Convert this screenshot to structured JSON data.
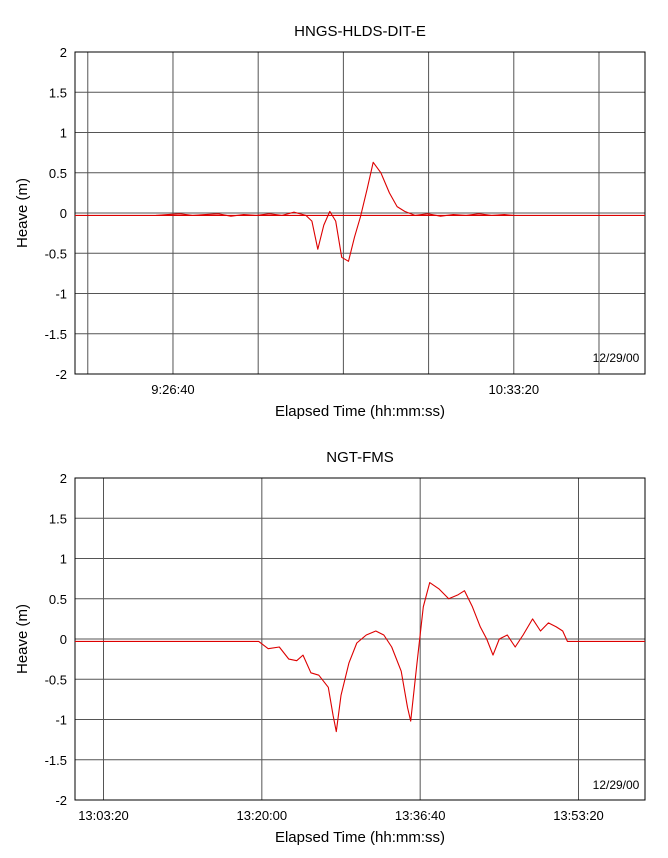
{
  "chart_data": [
    {
      "type": "line",
      "title": "HNGS-HLDS-DIT-E",
      "xlabel": "Elapsed Time (hh:mm:ss)",
      "ylabel": "Heave (m)",
      "date_stamp": "12/29/00",
      "ylim": [
        -2,
        2
      ],
      "yticks": [
        2,
        1.5,
        1,
        0.5,
        0,
        -0.5,
        -1,
        -1.5,
        -2
      ],
      "xlim": [
        "09:07:30",
        "10:59:00"
      ],
      "xtick_labels": [
        "9:26:40",
        "10:33:20"
      ],
      "xtick_times": [
        "09:26:40",
        "10:33:20"
      ],
      "grid": true,
      "series": [
        {
          "color": "#dd0000",
          "style": "straight",
          "points": [
            [
              "09:07:30",
              -0.03
            ],
            [
              "10:59:00",
              -0.03
            ]
          ]
        },
        {
          "color": "#dd0000",
          "style": "trace",
          "points": [
            [
              "09:23:20",
              -0.03
            ],
            [
              "09:25:40",
              -0.02
            ],
            [
              "09:28:00",
              -0.01
            ],
            [
              "09:30:30",
              -0.03
            ],
            [
              "09:33:00",
              -0.02
            ],
            [
              "09:35:30",
              -0.01
            ],
            [
              "09:38:00",
              -0.04
            ],
            [
              "09:40:30",
              -0.02
            ],
            [
              "09:43:00",
              -0.03
            ],
            [
              "09:45:30",
              -0.01
            ],
            [
              "09:48:00",
              -0.03
            ],
            [
              "09:50:20",
              0.01
            ],
            [
              "09:52:40",
              -0.03
            ],
            [
              "09:53:50",
              -0.1
            ],
            [
              "09:55:00",
              -0.45
            ],
            [
              "09:56:10",
              -0.15
            ],
            [
              "09:57:20",
              0.02
            ],
            [
              "09:58:30",
              -0.1
            ],
            [
              "09:59:40",
              -0.55
            ],
            [
              "10:01:00",
              -0.6
            ],
            [
              "10:02:10",
              -0.3
            ],
            [
              "10:03:20",
              -0.05
            ],
            [
              "10:04:40",
              0.3
            ],
            [
              "10:05:50",
              0.63
            ],
            [
              "10:07:20",
              0.5
            ],
            [
              "10:09:00",
              0.25
            ],
            [
              "10:10:30",
              0.08
            ],
            [
              "10:12:00",
              0.02
            ],
            [
              "10:14:00",
              -0.03
            ],
            [
              "10:16:30",
              -0.01
            ],
            [
              "10:19:00",
              -0.04
            ],
            [
              "10:21:30",
              -0.02
            ],
            [
              "10:24:00",
              -0.03
            ],
            [
              "10:26:30",
              -0.01
            ],
            [
              "10:29:00",
              -0.03
            ],
            [
              "10:31:30",
              -0.02
            ],
            [
              "10:33:20",
              -0.03
            ]
          ]
        }
      ]
    },
    {
      "type": "line",
      "title": "NGT-FMS",
      "xlabel": "Elapsed Time (hh:mm:ss)",
      "ylabel": "Heave (m)",
      "date_stamp": "12/29/00",
      "ylim": [
        -2,
        2
      ],
      "yticks": [
        2,
        1.5,
        1,
        0.5,
        0,
        -0.5,
        -1,
        -1.5,
        -2
      ],
      "xlim": [
        "13:00:20",
        "14:00:20"
      ],
      "xtick_labels": [
        "13:03:20",
        "13:20:00",
        "13:36:40",
        "13:53:20"
      ],
      "xtick_times": [
        "13:03:20",
        "13:20:00",
        "13:36:40",
        "13:53:20"
      ],
      "grid": true,
      "series": [
        {
          "color": "#dd0000",
          "style": "trace",
          "points": [
            [
              "13:00:20",
              -0.03
            ],
            [
              "13:19:40",
              -0.03
            ],
            [
              "13:20:40",
              -0.12
            ],
            [
              "13:21:50",
              -0.1
            ],
            [
              "13:22:50",
              -0.25
            ],
            [
              "13:23:40",
              -0.27
            ],
            [
              "13:24:20",
              -0.2
            ],
            [
              "13:25:10",
              -0.42
            ],
            [
              "13:26:00",
              -0.45
            ],
            [
              "13:27:00",
              -0.6
            ],
            [
              "13:27:30",
              -0.95
            ],
            [
              "13:27:50",
              -1.15
            ],
            [
              "13:28:20",
              -0.7
            ],
            [
              "13:29:10",
              -0.3
            ],
            [
              "13:30:00",
              -0.05
            ],
            [
              "13:31:00",
              0.05
            ],
            [
              "13:32:00",
              0.1
            ],
            [
              "13:32:50",
              0.05
            ],
            [
              "13:33:40",
              -0.1
            ],
            [
              "13:34:40",
              -0.4
            ],
            [
              "13:35:20",
              -0.85
            ],
            [
              "13:35:40",
              -1.02
            ],
            [
              "13:36:20",
              -0.3
            ],
            [
              "13:37:00",
              0.4
            ],
            [
              "13:37:40",
              0.7
            ],
            [
              "13:38:40",
              0.62
            ],
            [
              "13:39:40",
              0.5
            ],
            [
              "13:40:40",
              0.55
            ],
            [
              "13:41:20",
              0.6
            ],
            [
              "13:42:10",
              0.4
            ],
            [
              "13:43:00",
              0.15
            ],
            [
              "13:43:40",
              0.0
            ],
            [
              "13:44:20",
              -0.2
            ],
            [
              "13:45:00",
              0.0
            ],
            [
              "13:45:50",
              0.05
            ],
            [
              "13:46:40",
              -0.1
            ],
            [
              "13:47:30",
              0.05
            ],
            [
              "13:48:30",
              0.25
            ],
            [
              "13:49:20",
              0.1
            ],
            [
              "13:50:10",
              0.2
            ],
            [
              "13:51:00",
              0.15
            ],
            [
              "13:51:40",
              0.1
            ],
            [
              "13:52:10",
              -0.03
            ],
            [
              "14:00:20",
              -0.03
            ]
          ]
        }
      ]
    }
  ]
}
